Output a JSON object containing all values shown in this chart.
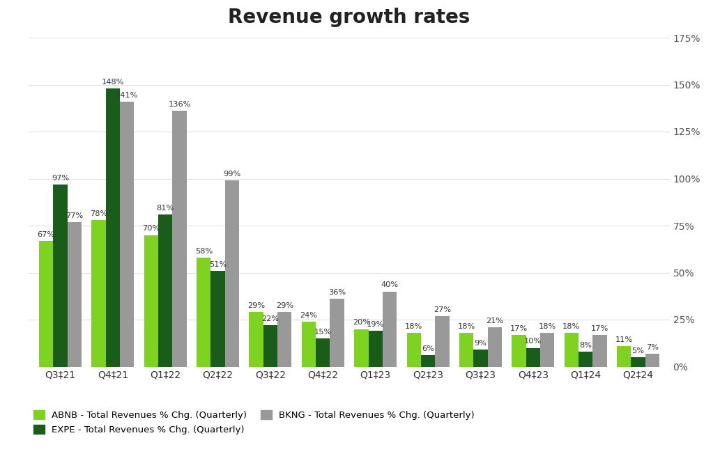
{
  "title": "Revenue growth rates",
  "categories": [
    "Q3‡21",
    "Q4‡21",
    "Q1‡22",
    "Q2‡22",
    "Q3‡22",
    "Q4‡22",
    "Q1‡23",
    "Q2‡23",
    "Q3‡23",
    "Q4‡23",
    "Q1‡24",
    "Q2‡24"
  ],
  "ABNB": [
    67,
    78,
    70,
    58,
    29,
    24,
    20,
    18,
    18,
    17,
    18,
    11
  ],
  "EXPE": [
    97,
    148,
    81,
    51,
    22,
    15,
    19,
    6,
    9,
    10,
    8,
    5
  ],
  "BKNG": [
    77,
    141,
    136,
    99,
    29,
    36,
    40,
    27,
    21,
    18,
    17,
    7
  ],
  "color_ABNB": "#7ed321",
  "color_EXPE": "#1a5c1a",
  "color_BKNG": "#999999",
  "background_color": "#ffffff",
  "grid_color": "#e0e0e0",
  "ylim": [
    0,
    175
  ],
  "yticks": [
    0,
    25,
    50,
    75,
    100,
    125,
    150,
    175
  ],
  "ytick_labels": [
    "0%",
    "25%",
    "50%",
    "75%",
    "100%",
    "125%",
    "150%",
    "175%"
  ],
  "legend_labels": [
    "ABNB - Total Revenues % Chg. (Quarterly)",
    "EXPE - Total Revenues % Chg. (Quarterly)",
    "BKNG - Total Revenues % Chg. (Quarterly)"
  ],
  "title_fontsize": 20,
  "tick_fontsize": 10,
  "bar_label_fontsize": 8.2
}
